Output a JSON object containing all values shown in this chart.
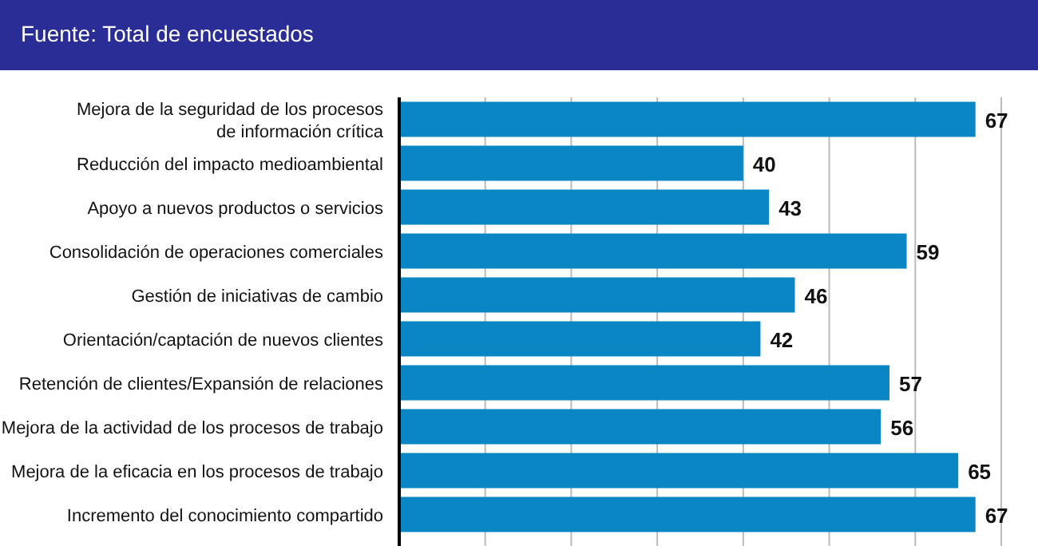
{
  "chart_data": {
    "type": "bar",
    "orientation": "horizontal",
    "title": "Fuente: Total de encuestados",
    "categories": [
      "Mejora de la seguridad de los procesos\nde información crítica",
      "Reducción del impacto medioambiental",
      "Apoyo a nuevos productos o servicios",
      "Consolidación de operaciones comerciales",
      "Gestión de iniciativas de cambio",
      "Orientación/captación de nuevos clientes",
      "Retención de clientes/Expansión de relaciones",
      "Mejora de la actividad de los procesos de trabajo",
      "Mejora de la eficacia en los procesos de trabajo",
      "Incremento del conocimiento compartido"
    ],
    "values": [
      67,
      40,
      43,
      59,
      46,
      42,
      57,
      56,
      65,
      67
    ],
    "color": "#0a86c4",
    "xlim": [
      0,
      70
    ],
    "xticks": [
      {
        "value": 0,
        "label": null
      },
      {
        "value": 10,
        "label": null
      },
      {
        "value": 20,
        "label": null
      },
      {
        "value": 30,
        "label": null
      },
      {
        "value": 40,
        "label": null
      },
      {
        "value": 50,
        "label": null
      },
      {
        "value": 60,
        "label": null
      },
      {
        "value": 70,
        "label": null
      }
    ],
    "tick_labels": "y",
    "grid": "x",
    "data_labels": true
  }
}
